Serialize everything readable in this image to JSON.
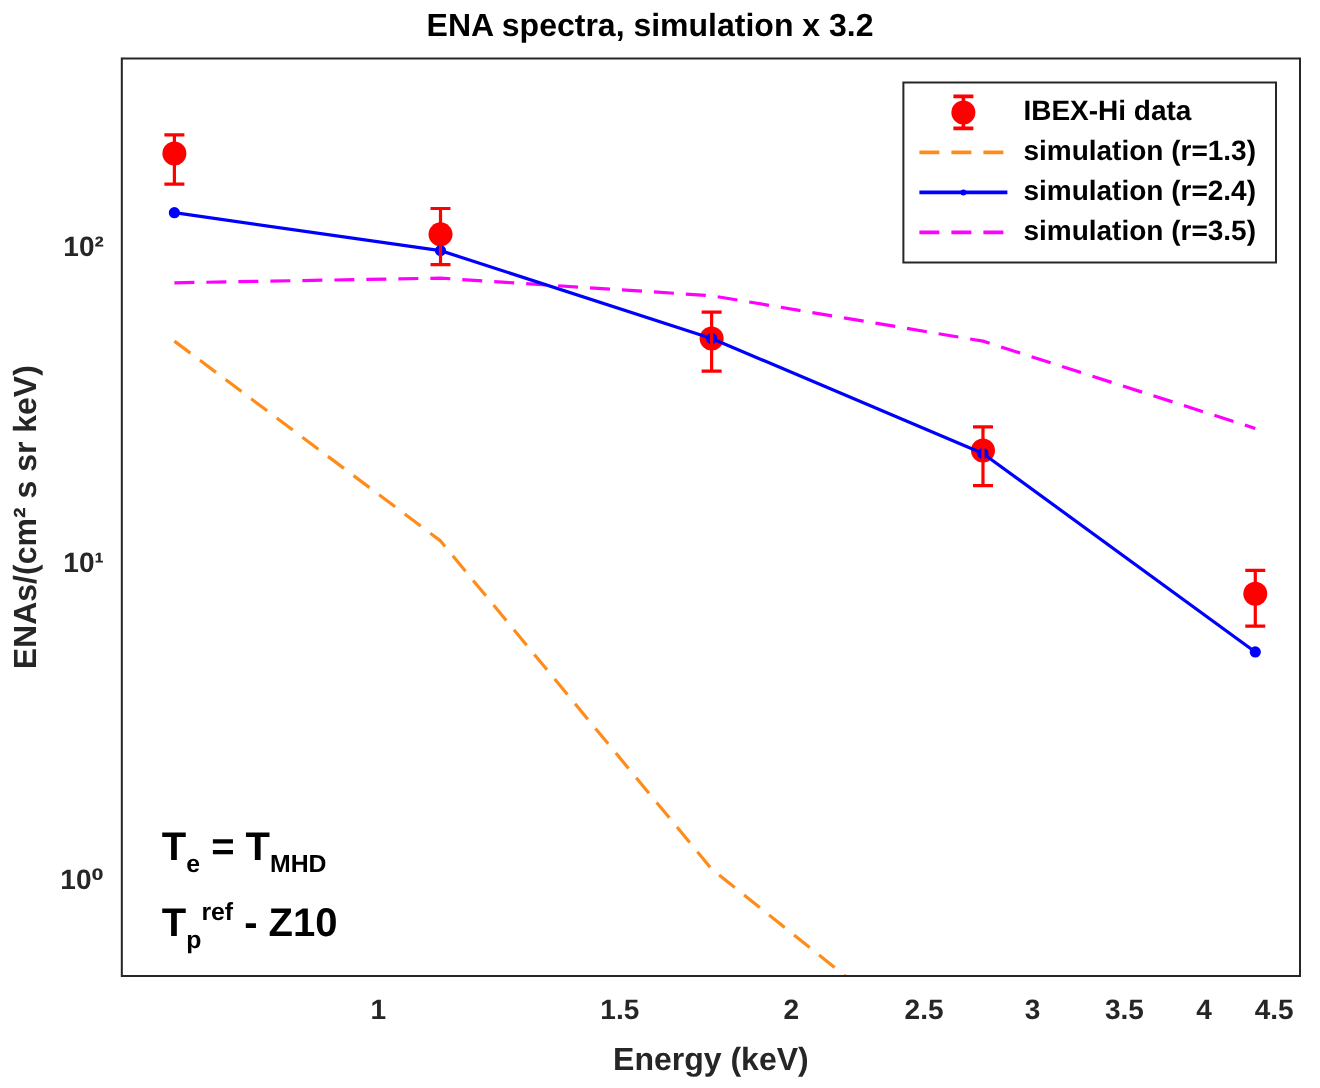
{
  "chart_data": {
    "type": "line",
    "title": "ENA spectra, simulation x 3.2",
    "xlabel": "Energy (keV)",
    "ylabel": "ENAs/(cm² s sr keV)",
    "log": "xy",
    "grid": false,
    "legend": "top right",
    "xlim": [
      0.65,
      4.7
    ],
    "xticks": [
      1,
      1.5,
      2,
      2.5,
      3,
      3.5,
      4,
      4.5
    ],
    "ylim": [
      0.5,
      400
    ],
    "yticks": [
      {
        "value": 1,
        "label": "10⁰"
      },
      {
        "value": 10,
        "label": "10¹"
      },
      {
        "value": 100,
        "label": "10²"
      }
    ],
    "series": [
      {
        "name": "IBEX-Hi data",
        "type": "scatter",
        "color": "#ff0000",
        "marker": "circle",
        "x": [
          0.71,
          1.11,
          1.75,
          2.76,
          4.36
        ],
        "values": [
          200,
          111,
          52,
          23,
          8.1
        ],
        "errors": [
          [
            160,
            229
          ],
          [
            89,
            134
          ],
          [
            41,
            63
          ],
          [
            17.8,
            27.3
          ],
          [
            6.4,
            9.6
          ]
        ]
      },
      {
        "name": "simulation (r=1.3)",
        "type": "line",
        "color": "#ff8c1a",
        "line_style": "dashed",
        "marker": "none",
        "x": [
          0.71,
          1.11,
          1.75,
          2.19
        ],
        "values": [
          51,
          11.9,
          1.09,
          0.5
        ]
      },
      {
        "name": "simulation (r=2.4)",
        "type": "line",
        "color": "#0000ff",
        "line_style": "solid",
        "marker": "circle",
        "x": [
          0.71,
          1.11,
          1.75,
          2.76,
          4.36
        ],
        "values": [
          130,
          98.6,
          52,
          22.5,
          5.3
        ]
      },
      {
        "name": "simulation (r=3.5)",
        "type": "line",
        "color": "#ff00ff",
        "line_style": "dashed",
        "marker": "none",
        "x": [
          0.71,
          1.11,
          1.75,
          2.76,
          4.36
        ],
        "values": [
          78,
          80.7,
          71,
          51,
          27
        ]
      }
    ],
    "annotations": [
      "T$_{e}$ = T$_{MHD}$",
      "T$_{p}$$^{ref}$ - Z10"
    ]
  }
}
